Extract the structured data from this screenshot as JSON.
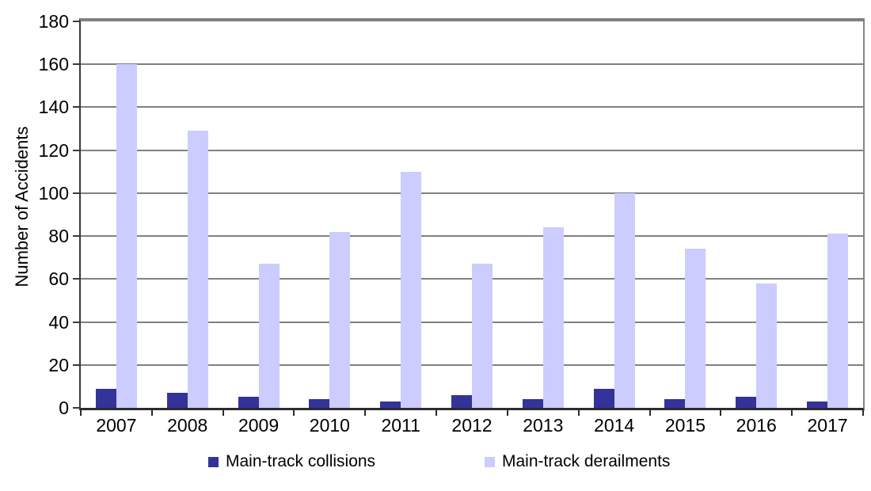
{
  "chart_data": {
    "type": "bar",
    "title": "",
    "xlabel": "",
    "ylabel": "Number of Accidents",
    "ylim": [
      0,
      180
    ],
    "ytick_step": 20,
    "grid": true,
    "legend_position": "bottom",
    "categories": [
      "2007",
      "2008",
      "2009",
      "2010",
      "2011",
      "2012",
      "2013",
      "2014",
      "2015",
      "2016",
      "2017"
    ],
    "series": [
      {
        "name": "Main-track collisions",
        "color": "#333399",
        "values": [
          9,
          7,
          5,
          4,
          3,
          6,
          4,
          9,
          4,
          5,
          3
        ]
      },
      {
        "name": "Main-track derailments",
        "color": "#CCCCFF",
        "values": [
          160,
          129,
          67,
          82,
          110,
          67,
          84,
          100,
          74,
          58,
          81
        ]
      }
    ]
  },
  "style": {
    "gridline_color": "#808080",
    "axis_color": "#2b2b2b",
    "plot_border_color": "#808080",
    "text_color": "#000000",
    "background_color": "#ffffff"
  }
}
